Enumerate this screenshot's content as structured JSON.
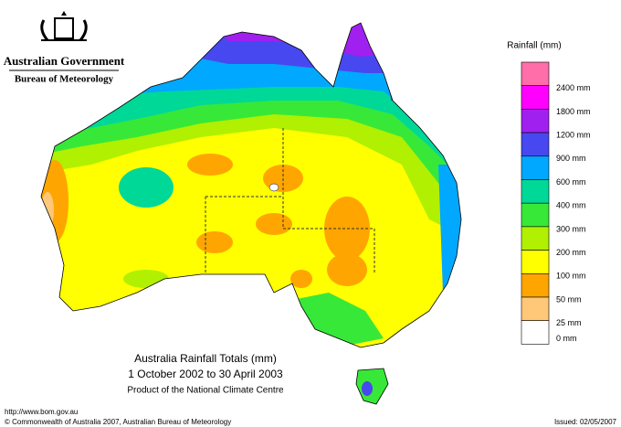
{
  "header": {
    "government": "Australian Government",
    "bureau": "Bureau of Meteorology"
  },
  "legend": {
    "title": "Rainfall (mm)",
    "colors": [
      "#ff6ea8",
      "#ff00ff",
      "#a020f0",
      "#4848f0",
      "#00a8ff",
      "#00d898",
      "#38e838",
      "#b0f000",
      "#ffff00",
      "#ffa500",
      "#ffc878",
      "#ffffff"
    ],
    "labels": [
      "2400 mm",
      "1800 mm",
      "1200 mm",
      "900 mm",
      "600 mm",
      "400 mm",
      "300 mm",
      "200 mm",
      "100 mm",
      "50 mm",
      "25 mm",
      "0 mm"
    ]
  },
  "map": {
    "title": "Australia Rainfall Totals (mm)",
    "period": "1 October 2002 to 30 April 2003",
    "credit": "Product of the National Climate Centre"
  },
  "footer": {
    "url": "http://www.bom.gov.au",
    "copyright": "© Commonwealth of Australia 2007, Australian Bureau of Meteorology",
    "issued": "Issued: 02/05/2007"
  }
}
